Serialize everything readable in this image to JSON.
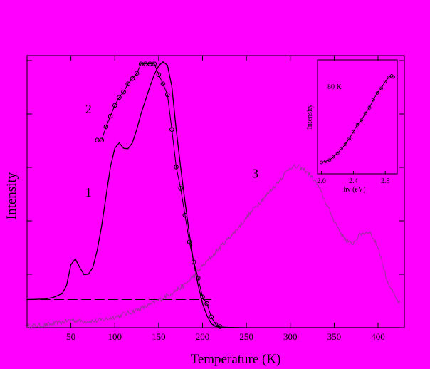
{
  "chart_data": [
    {
      "type": "line",
      "title": "",
      "xlabel": "Temperature (K)",
      "ylabel": "Intensity",
      "xlim": [
        0,
        430
      ],
      "ylim": [
        0,
        1.0
      ],
      "xticks": [
        50,
        100,
        150,
        200,
        250,
        300,
        350,
        400
      ],
      "xtick_labels": [
        "50",
        "100",
        "150",
        "200",
        "250",
        "300",
        "350",
        "400"
      ],
      "grid": false,
      "series_labels": [
        {
          "text": "1",
          "x": 70,
          "y": 0.49
        },
        {
          "text": "2",
          "x": 70,
          "y": 0.8
        },
        {
          "text": "3",
          "x": 260,
          "y": 0.56
        }
      ],
      "series": [
        {
          "id": "1",
          "style": "line",
          "x": [
            0,
            20,
            30,
            40,
            45,
            50,
            55,
            60,
            65,
            70,
            75,
            80,
            85,
            90,
            95,
            100,
            105,
            110,
            115,
            120,
            125,
            130,
            135,
            140,
            145,
            150,
            155,
            160,
            165,
            170,
            175,
            180,
            185,
            190,
            195,
            200,
            205,
            210,
            215,
            220,
            230,
            250,
            300,
            350,
            400,
            425
          ],
          "y": [
            0.105,
            0.107,
            0.113,
            0.127,
            0.158,
            0.235,
            0.257,
            0.225,
            0.198,
            0.2,
            0.225,
            0.29,
            0.38,
            0.49,
            0.6,
            0.67,
            0.69,
            0.67,
            0.668,
            0.69,
            0.74,
            0.8,
            0.85,
            0.9,
            0.945,
            0.978,
            0.993,
            0.98,
            0.9,
            0.74,
            0.6,
            0.47,
            0.35,
            0.24,
            0.16,
            0.09,
            0.045,
            0.015,
            0.005,
            0.002,
            0.001,
            0.0,
            0.0,
            0.0,
            0.0,
            0.0
          ]
        },
        {
          "id": "baseline",
          "style": "dashed",
          "x": [
            0,
            210
          ],
          "y": [
            0.105,
            0.105
          ]
        },
        {
          "id": "2",
          "style": "open-circles",
          "x": [
            80,
            85,
            90,
            95,
            100,
            105,
            110,
            115,
            120,
            125,
            130,
            135,
            140,
            145,
            150,
            155,
            160,
            165,
            170,
            175,
            180,
            185,
            190,
            195,
            200,
            205,
            210,
            215,
            220
          ],
          "y": [
            0.7,
            0.7,
            0.75,
            0.79,
            0.83,
            0.86,
            0.88,
            0.91,
            0.93,
            0.95,
            0.985,
            0.985,
            0.985,
            0.985,
            0.945,
            0.91,
            0.87,
            0.74,
            0.6,
            0.52,
            0.42,
            0.32,
            0.245,
            0.185,
            0.115,
            0.09,
            0.04,
            0.012,
            0.004
          ]
        },
        {
          "id": "3",
          "style": "noisy-line",
          "color": "#9A2E9A",
          "x": [
            0,
            20,
            40,
            50,
            60,
            80,
            100,
            120,
            140,
            160,
            180,
            200,
            220,
            240,
            260,
            280,
            290,
            300,
            310,
            320,
            330,
            340,
            350,
            360,
            370,
            380,
            390,
            400,
            410,
            420,
            425
          ],
          "y": [
            0.005,
            0.01,
            0.02,
            0.03,
            0.025,
            0.025,
            0.04,
            0.06,
            0.085,
            0.12,
            0.16,
            0.23,
            0.3,
            0.37,
            0.45,
            0.52,
            0.56,
            0.6,
            0.6,
            0.58,
            0.54,
            0.47,
            0.4,
            0.34,
            0.31,
            0.35,
            0.36,
            0.3,
            0.18,
            0.11,
            0.09
          ]
        }
      ]
    },
    {
      "type": "scatter",
      "title": "",
      "annotation": "80 K",
      "xlabel": "hv (eV)",
      "ylabel": "Intensity",
      "xlim": [
        1.95,
        2.95
      ],
      "ylim": [
        0,
        1.0
      ],
      "xticks": [
        2.0,
        2.4,
        2.8
      ],
      "xtick_labels": [
        "2.0",
        "2.4",
        "2.8"
      ],
      "x": [
        2.0,
        2.05,
        2.1,
        2.15,
        2.2,
        2.25,
        2.3,
        2.35,
        2.4,
        2.45,
        2.5,
        2.55,
        2.6,
        2.65,
        2.7,
        2.75,
        2.8,
        2.85,
        2.88,
        2.9
      ],
      "y": [
        0.1,
        0.11,
        0.12,
        0.15,
        0.18,
        0.22,
        0.26,
        0.31,
        0.37,
        0.43,
        0.47,
        0.53,
        0.58,
        0.65,
        0.71,
        0.75,
        0.81,
        0.85,
        0.86,
        0.85
      ]
    }
  ]
}
